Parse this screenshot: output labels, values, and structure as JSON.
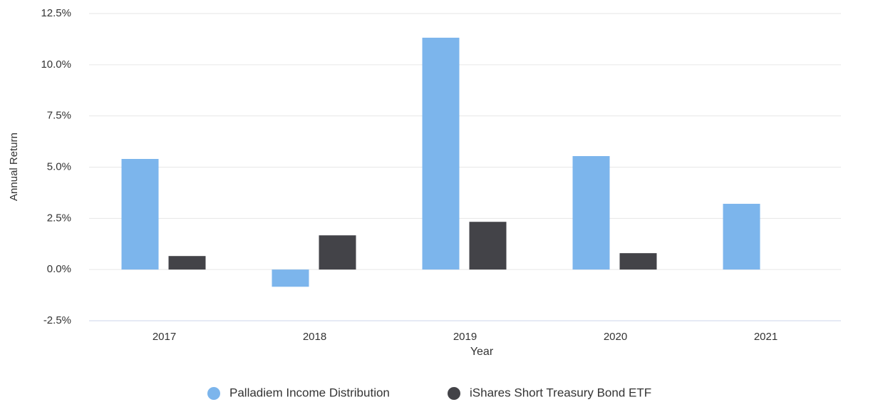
{
  "chart_data": {
    "type": "bar",
    "categories": [
      "2017",
      "2018",
      "2019",
      "2020",
      "2021"
    ],
    "series": [
      {
        "name": "Palladiem Income Distribution",
        "color": "#7cb5ec",
        "values": [
          5.4,
          -0.84,
          11.32,
          5.54,
          3.21
        ]
      },
      {
        "name": "iShares Short Treasury Bond ETF",
        "color": "#434348",
        "values": [
          0.66,
          1.67,
          2.33,
          0.8,
          0
        ]
      }
    ],
    "x_label": "Year",
    "y_label": "Annual Return",
    "ylim": [
      -2.5,
      12.5
    ],
    "yticks": [
      {
        "value": -2.5,
        "label": "-2.5%"
      },
      {
        "value": 0,
        "label": "0.0%"
      },
      {
        "value": 2.5,
        "label": "2.5%"
      },
      {
        "value": 5,
        "label": "5.0%"
      },
      {
        "value": 7.5,
        "label": "7.5%"
      },
      {
        "value": 10,
        "label": "10.0%"
      },
      {
        "value": 12.5,
        "label": "12.5%"
      }
    ],
    "grid": true
  }
}
